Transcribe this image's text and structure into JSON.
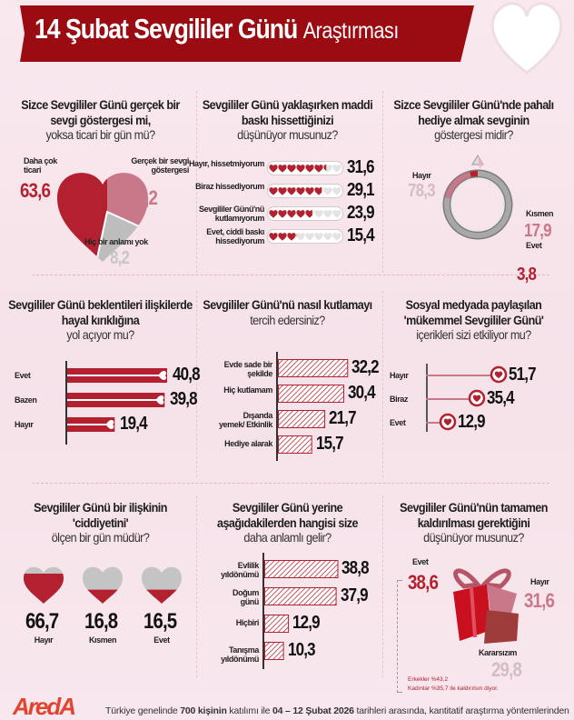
{
  "header": {
    "title_bold": "14 Şubat Sevgililer Günü",
    "title_light": "Araştırması"
  },
  "colors": {
    "dark_red": "#9a0b12",
    "red": "#b3202f",
    "pink": "#c9788a",
    "grey": "#bdbdbd",
    "light_text": "#d3aab5"
  },
  "chart_data": [
    {
      "type": "pie",
      "shape": "heart",
      "title_bold": "Sizce Sevgililer Günü gerçek bir sevgi göstergesi mi,",
      "title_light": "yoksa ticari bir gün mü?",
      "categories": [
        "Daha çok ticari",
        "Gerçek bir sevgi göstergesi",
        "Hiç bir anlamı yok"
      ],
      "values": [
        63.6,
        28.2,
        8.2
      ]
    },
    {
      "type": "bar",
      "style": "heart-rating",
      "title_bold": "Sevgililer Günü yaklaşırken maddi baskı hissettiğinizi",
      "title_light": "düşünüyor musunuz?",
      "categories": [
        "Hayır, hissetmiyorum",
        "Biraz hissediyorum",
        "Sevgililer Günü'nü kutlamıyorum",
        "Evet, ciddi baskı hissediyorum"
      ],
      "values": [
        31.6,
        29.1,
        23.9,
        15.4
      ]
    },
    {
      "type": "pie",
      "shape": "ring",
      "title_bold": "Sizce Sevgililer Günü'nde pahalı hediye almak sevginin",
      "title_light": "göstergesi midir?",
      "categories": [
        "Hayır",
        "Kısmen",
        "Evet"
      ],
      "values": [
        78.3,
        17.9,
        3.8
      ]
    },
    {
      "type": "bar",
      "style": "solid-heart-end",
      "title_bold": "Sevgililer Günü beklentileri ilişkilerde hayal kırıklığına",
      "title_light": "yol açıyor mu?",
      "categories": [
        "Evet",
        "Bazen",
        "Hayır"
      ],
      "values": [
        40.8,
        39.8,
        19.4
      ]
    },
    {
      "type": "bar",
      "style": "hatched",
      "title_bold": "Sevgililer Günü'nü nasıl kutlamayı",
      "title_light": "tercih edersiniz?",
      "categories": [
        "Evde sade bir şekilde",
        "Hiç kutlamam",
        "Dışarıda yemek/ Etkinlik",
        "Hediye alarak"
      ],
      "values": [
        32.2,
        30.4,
        21.7,
        15.7
      ]
    },
    {
      "type": "bar",
      "style": "lollipop-heart",
      "title_bold": "Sosyal medyada paylaşılan 'mükemmel Sevgililer Günü'",
      "title_light": "içerikleri sizi etkiliyor mu?",
      "categories": [
        "Hayır",
        "Biraz",
        "Evet"
      ],
      "values": [
        51.7,
        35.4,
        12.9
      ]
    },
    {
      "type": "bar",
      "style": "heart-fill",
      "title_bold": "Sevgililer Günü bir ilişkinin 'ciddiyetini'",
      "title_light": "ölçen bir gün müdür?",
      "categories": [
        "Hayır",
        "Kısmen",
        "Evet"
      ],
      "values": [
        66.7,
        16.8,
        16.5
      ]
    },
    {
      "type": "bar",
      "style": "hatched",
      "title_bold": "Sevgililer Günü yerine aşağıdakilerden hangisi size",
      "title_light": "daha anlamlı gelir?",
      "categories": [
        "Evlilik yıldönümü",
        "Doğum günü",
        "Hiçbiri",
        "Tanışma yıldönümü"
      ],
      "values": [
        38.8,
        37.9,
        12.9,
        10.3
      ]
    },
    {
      "type": "pie",
      "shape": "gift",
      "title_bold": "Sevgililer Günü'nün tamamen kaldırılması gerektiğini",
      "title_light": "düşünüyor musunuz?",
      "categories": [
        "Evet",
        "Hayır",
        "Kararsızım"
      ],
      "values": [
        38.6,
        31.6,
        29.8
      ],
      "annotation": [
        "Erkekler %43,2",
        "Kadınlar %35,7 ile kaldırılsın diyor."
      ]
    }
  ],
  "footer": {
    "logo": "AredA",
    "text": [
      "Türkiye genelinde ",
      "700 kişinin",
      " katılımı ile ",
      "04 – 12 Şubat 2026",
      " tarihleri arasında, kantitatif araştırma yöntemlerinden"
    ]
  }
}
